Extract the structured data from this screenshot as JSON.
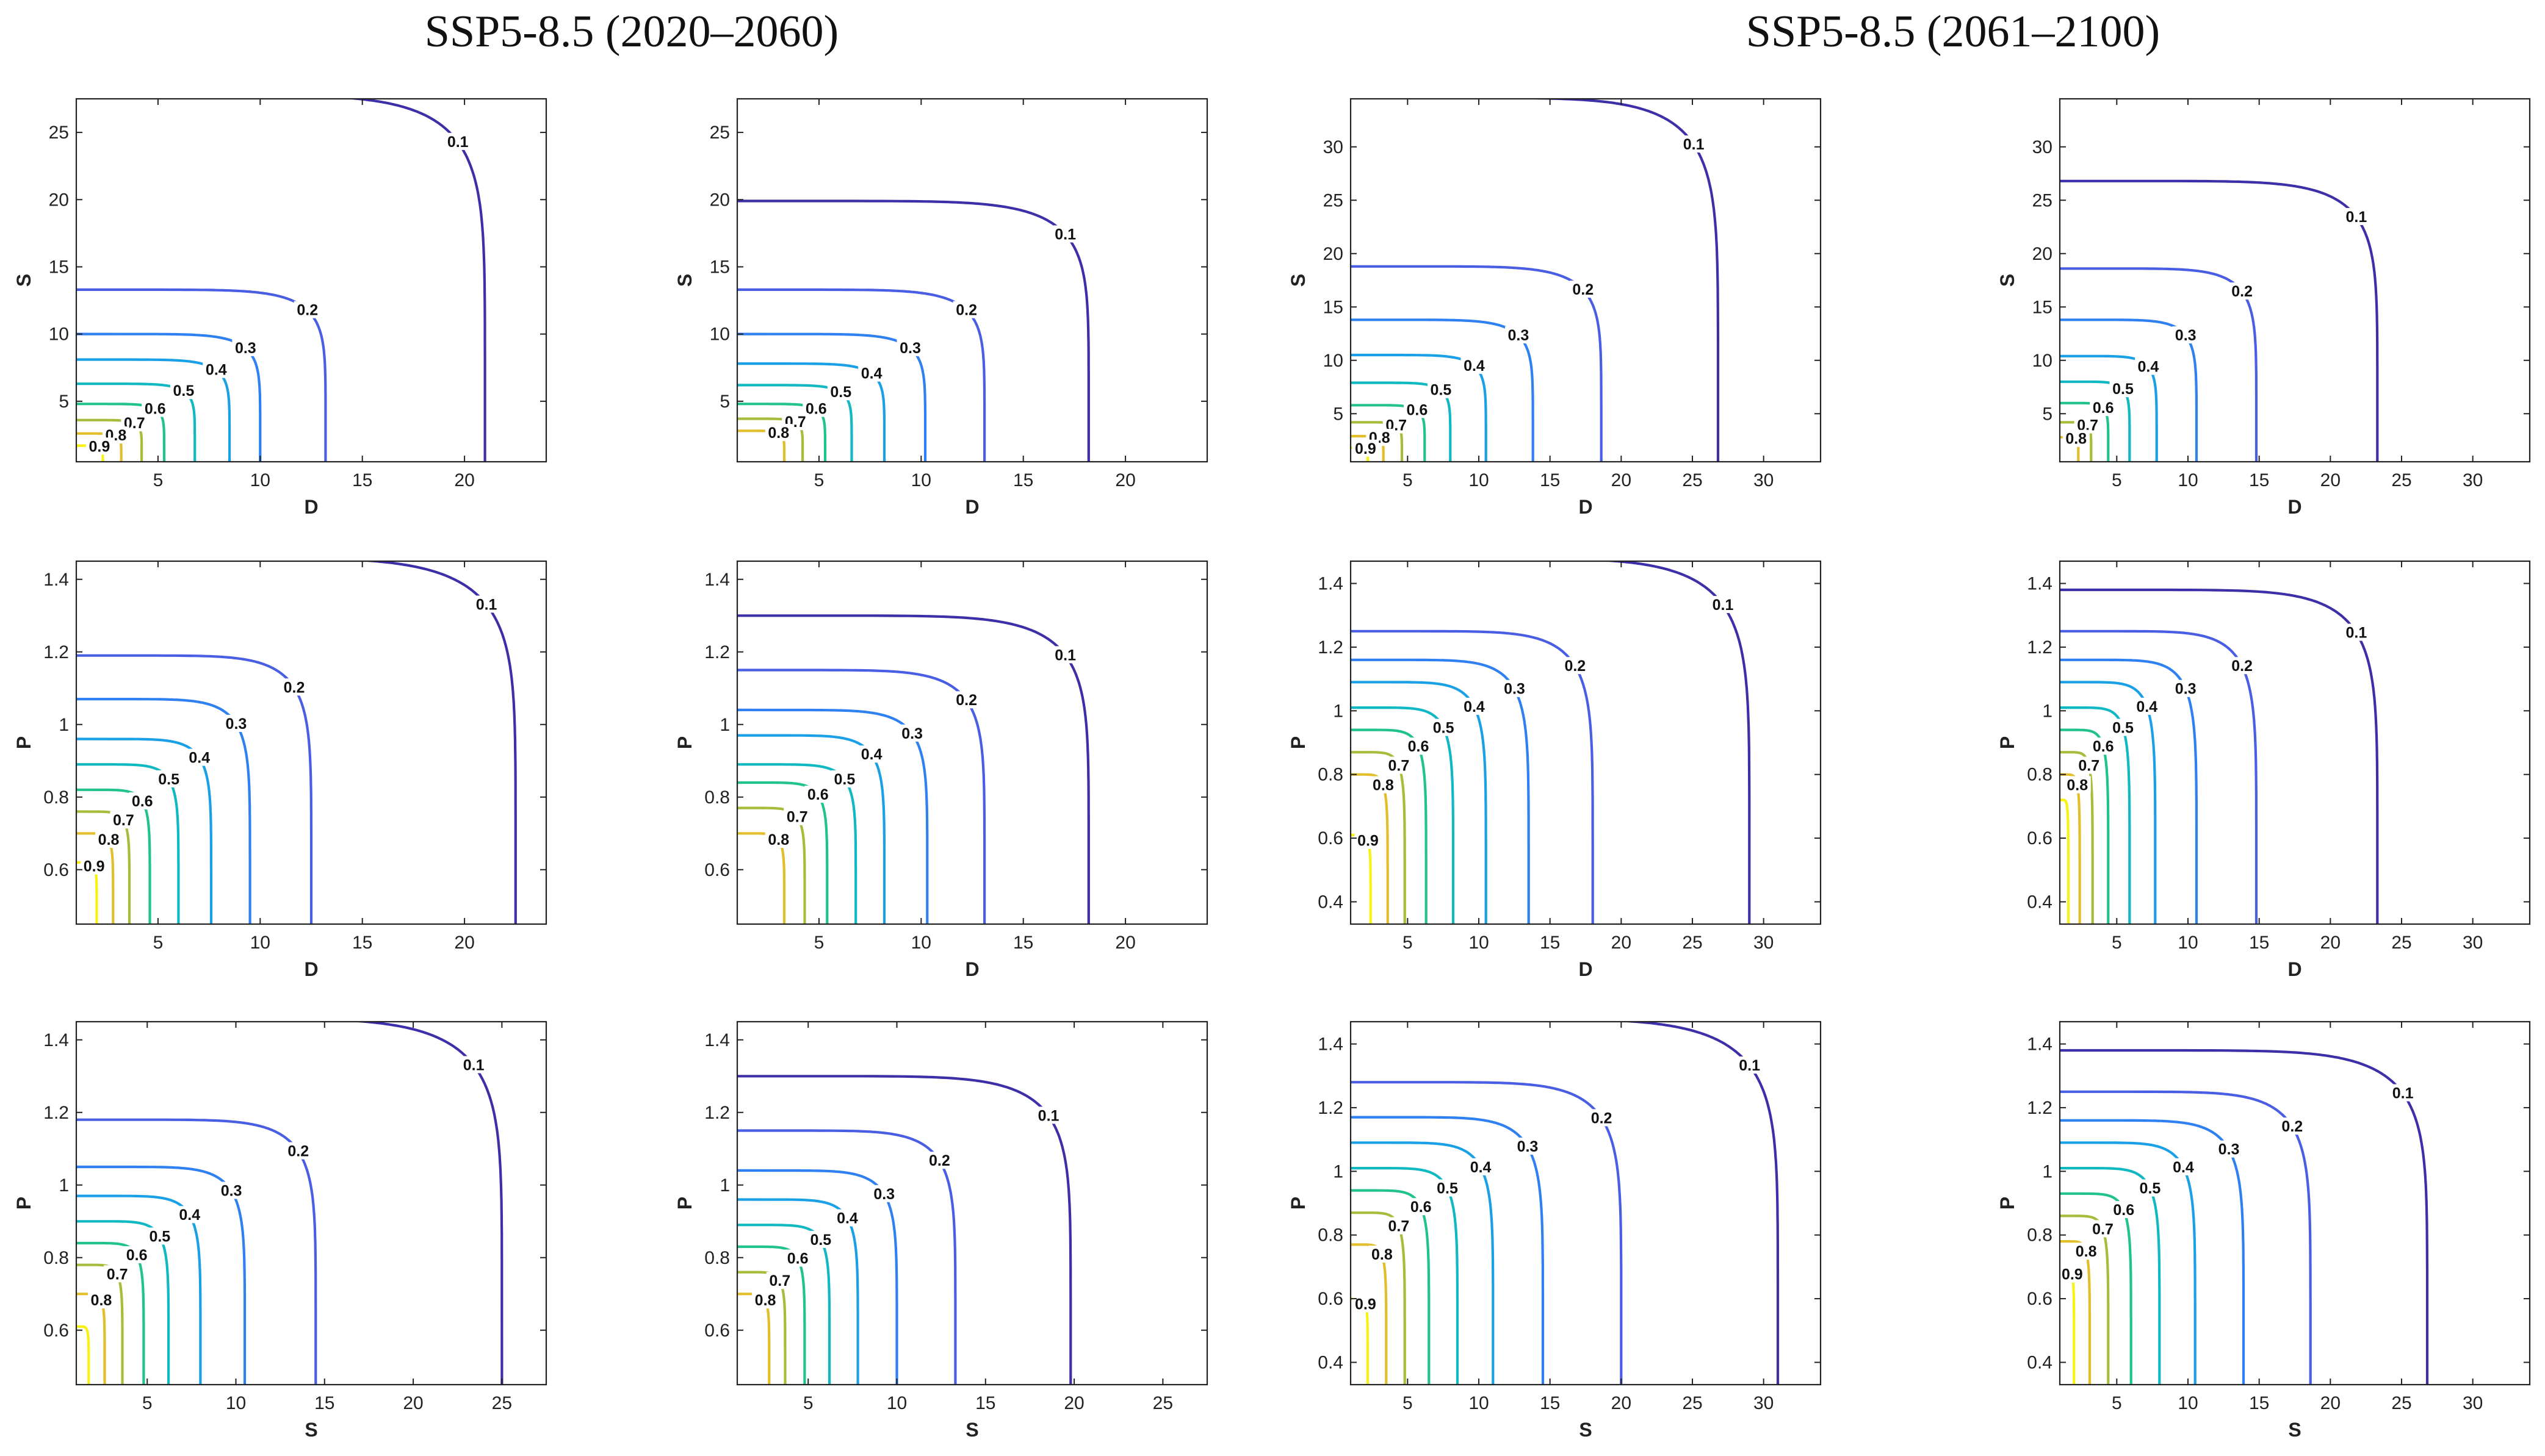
{
  "titles": [
    "SSP5-8.5 (2020–2060)",
    "SSP5-8.5 (2061–2100)"
  ],
  "contour_levels": [
    0.1,
    0.2,
    0.3,
    0.4,
    0.5,
    0.6,
    0.7,
    0.8,
    0.9
  ],
  "level_colors": {
    "0.1": "#3d2fa8",
    "0.2": "#4a5ee3",
    "0.3": "#2f80f0",
    "0.4": "#1aa0e6",
    "0.5": "#10b8c2",
    "0.6": "#22c38a",
    "0.7": "#a6bd3b",
    "0.8": "#e2be2a",
    "0.9": "#f8f210"
  },
  "chart_data": [
    {
      "type": "contour",
      "panel": "row1-col1",
      "group": "SSP5-8.5 (2020–2060)",
      "kind": "joint-survival",
      "xlabel": "D",
      "ylabel": "S",
      "xlim": [
        1,
        24
      ],
      "ylim": [
        0.5,
        27.5
      ],
      "xticks": [
        5,
        10,
        15,
        20
      ],
      "yticks": [
        5,
        10,
        15,
        20,
        25
      ],
      "contours": [
        {
          "level": 0.1,
          "a": 21.0,
          "b": 27.8
        },
        {
          "level": 0.2,
          "a": 13.2,
          "b": 13.3
        },
        {
          "level": 0.3,
          "a": 10.0,
          "b": 10.0
        },
        {
          "level": 0.4,
          "a": 8.5,
          "b": 8.1
        },
        {
          "level": 0.5,
          "a": 6.8,
          "b": 6.3
        },
        {
          "level": 0.6,
          "a": 5.3,
          "b": 4.8
        },
        {
          "level": 0.7,
          "a": 4.2,
          "b": 3.6
        },
        {
          "level": 0.8,
          "a": 3.2,
          "b": 2.6
        },
        {
          "level": 0.9,
          "a": 2.3,
          "b": 1.7
        }
      ]
    },
    {
      "type": "contour",
      "panel": "row1-col2",
      "group": "SSP5-8.5 (2020–2060)",
      "kind": "return-period",
      "xlabel": "D",
      "ylabel": "S",
      "xlim": [
        1,
        24
      ],
      "ylim": [
        0.5,
        27.5
      ],
      "xticks": [
        5,
        10,
        15,
        20
      ],
      "yticks": [
        5,
        10,
        15,
        20,
        25
      ],
      "contours": [
        {
          "level": 0.1,
          "a": 18.2,
          "b": 19.9
        },
        {
          "level": 0.2,
          "a": 13.1,
          "b": 13.3
        },
        {
          "level": 0.3,
          "a": 10.2,
          "b": 10.0
        },
        {
          "level": 0.4,
          "a": 8.2,
          "b": 7.8
        },
        {
          "level": 0.5,
          "a": 6.6,
          "b": 6.2
        },
        {
          "level": 0.6,
          "a": 5.3,
          "b": 4.8
        },
        {
          "level": 0.7,
          "a": 4.2,
          "b": 3.7
        },
        {
          "level": 0.8,
          "a": 3.3,
          "b": 2.8
        }
      ]
    },
    {
      "type": "contour",
      "panel": "row1-col3",
      "group": "SSP5-8.5 (2061–2100)",
      "kind": "joint-survival",
      "xlabel": "D",
      "ylabel": "S",
      "xlim": [
        1,
        34
      ],
      "ylim": [
        0.5,
        34.5
      ],
      "xticks": [
        5,
        10,
        15,
        20,
        25,
        30
      ],
      "yticks": [
        5,
        10,
        15,
        20,
        25,
        30
      ],
      "contours": [
        {
          "level": 0.1,
          "a": 26.8,
          "b": 34.6
        },
        {
          "level": 0.2,
          "a": 18.6,
          "b": 18.8
        },
        {
          "level": 0.3,
          "a": 13.8,
          "b": 13.8
        },
        {
          "level": 0.4,
          "a": 10.5,
          "b": 10.5
        },
        {
          "level": 0.5,
          "a": 8.0,
          "b": 7.9
        },
        {
          "level": 0.6,
          "a": 6.2,
          "b": 5.8
        },
        {
          "level": 0.7,
          "a": 4.6,
          "b": 4.2
        },
        {
          "level": 0.8,
          "a": 3.3,
          "b": 2.9
        },
        {
          "level": 0.9,
          "a": 2.2,
          "b": 1.8
        }
      ]
    },
    {
      "type": "contour",
      "panel": "row1-col4",
      "group": "SSP5-8.5 (2061–2100)",
      "kind": "return-period",
      "xlabel": "D",
      "ylabel": "S",
      "xlim": [
        1,
        34
      ],
      "ylim": [
        0.5,
        34.5
      ],
      "xticks": [
        5,
        10,
        15,
        20,
        25,
        30
      ],
      "yticks": [
        5,
        10,
        15,
        20,
        25,
        30
      ],
      "contours": [
        {
          "level": 0.1,
          "a": 23.3,
          "b": 26.8
        },
        {
          "level": 0.2,
          "a": 14.8,
          "b": 18.6
        },
        {
          "level": 0.3,
          "a": 10.6,
          "b": 13.8
        },
        {
          "level": 0.4,
          "a": 7.8,
          "b": 10.4
        },
        {
          "level": 0.5,
          "a": 5.9,
          "b": 8.0
        },
        {
          "level": 0.6,
          "a": 4.4,
          "b": 6.0
        },
        {
          "level": 0.7,
          "a": 3.2,
          "b": 4.2
        },
        {
          "level": 0.8,
          "a": 2.3,
          "b": 2.8
        }
      ]
    },
    {
      "type": "contour",
      "panel": "row2-col1",
      "group": "SSP5-8.5 (2020–2060)",
      "kind": "joint-survival",
      "xlabel": "D",
      "ylabel": "P",
      "xlim": [
        1,
        24
      ],
      "ylim": [
        0.45,
        1.45
      ],
      "xticks": [
        5,
        10,
        15,
        20
      ],
      "yticks": [
        0.6,
        0.8,
        1,
        1.2,
        1.4
      ],
      "contours": [
        {
          "level": 0.1,
          "a": 22.5,
          "b": 1.46
        },
        {
          "level": 0.2,
          "a": 12.5,
          "b": 1.19
        },
        {
          "level": 0.3,
          "a": 9.5,
          "b": 1.07
        },
        {
          "level": 0.4,
          "a": 7.6,
          "b": 0.96
        },
        {
          "level": 0.5,
          "a": 6.0,
          "b": 0.89
        },
        {
          "level": 0.6,
          "a": 4.6,
          "b": 0.82
        },
        {
          "level": 0.7,
          "a": 3.6,
          "b": 0.76
        },
        {
          "level": 0.8,
          "a": 2.8,
          "b": 0.7
        },
        {
          "level": 0.9,
          "a": 2.0,
          "b": 0.62
        }
      ]
    },
    {
      "type": "contour",
      "panel": "row2-col2",
      "group": "SSP5-8.5 (2020–2060)",
      "kind": "return-period",
      "xlabel": "D",
      "ylabel": "P",
      "xlim": [
        1,
        24
      ],
      "ylim": [
        0.45,
        1.45
      ],
      "xticks": [
        5,
        10,
        15,
        20
      ],
      "yticks": [
        0.6,
        0.8,
        1,
        1.2,
        1.4
      ],
      "contours": [
        {
          "level": 0.1,
          "a": 18.2,
          "b": 1.3
        },
        {
          "level": 0.2,
          "a": 13.1,
          "b": 1.15
        },
        {
          "level": 0.3,
          "a": 10.3,
          "b": 1.04
        },
        {
          "level": 0.4,
          "a": 8.2,
          "b": 0.97
        },
        {
          "level": 0.5,
          "a": 6.8,
          "b": 0.89
        },
        {
          "level": 0.6,
          "a": 5.4,
          "b": 0.84
        },
        {
          "level": 0.7,
          "a": 4.3,
          "b": 0.77
        },
        {
          "level": 0.8,
          "a": 3.3,
          "b": 0.7
        }
      ]
    },
    {
      "type": "contour",
      "panel": "row2-col3",
      "group": "SSP5-8.5 (2061–2100)",
      "kind": "joint-survival",
      "xlabel": "D",
      "ylabel": "P",
      "xlim": [
        1,
        34
      ],
      "ylim": [
        0.33,
        1.47
      ],
      "xticks": [
        5,
        10,
        15,
        20,
        25,
        30
      ],
      "yticks": [
        0.4,
        0.6,
        0.8,
        1,
        1.2,
        1.4
      ],
      "contours": [
        {
          "level": 0.1,
          "a": 29.0,
          "b": 1.48
        },
        {
          "level": 0.2,
          "a": 18.0,
          "b": 1.25
        },
        {
          "level": 0.3,
          "a": 13.5,
          "b": 1.16
        },
        {
          "level": 0.4,
          "a": 10.5,
          "b": 1.09
        },
        {
          "level": 0.5,
          "a": 8.2,
          "b": 1.01
        },
        {
          "level": 0.6,
          "a": 6.3,
          "b": 0.94
        },
        {
          "level": 0.7,
          "a": 4.8,
          "b": 0.87
        },
        {
          "level": 0.8,
          "a": 3.6,
          "b": 0.8
        },
        {
          "level": 0.9,
          "a": 2.4,
          "b": 0.61
        }
      ]
    },
    {
      "type": "contour",
      "panel": "row2-col4",
      "group": "SSP5-8.5 (2061–2100)",
      "kind": "return-period",
      "xlabel": "D",
      "ylabel": "P",
      "xlim": [
        1,
        34
      ],
      "ylim": [
        0.33,
        1.47
      ],
      "xticks": [
        5,
        10,
        15,
        20,
        25,
        30
      ],
      "yticks": [
        0.4,
        0.6,
        0.8,
        1,
        1.2,
        1.4
      ],
      "contours": [
        {
          "level": 0.1,
          "a": 23.3,
          "b": 1.38
        },
        {
          "level": 0.2,
          "a": 14.8,
          "b": 1.25
        },
        {
          "level": 0.3,
          "a": 10.6,
          "b": 1.16
        },
        {
          "level": 0.4,
          "a": 7.7,
          "b": 1.09
        },
        {
          "level": 0.5,
          "a": 5.9,
          "b": 1.01
        },
        {
          "level": 0.6,
          "a": 4.4,
          "b": 0.94
        },
        {
          "level": 0.7,
          "a": 3.3,
          "b": 0.87
        },
        {
          "level": 0.8,
          "a": 2.4,
          "b": 0.8
        },
        {
          "level": 0.9,
          "a": 1.6,
          "b": 0.72
        }
      ]
    },
    {
      "type": "contour",
      "panel": "row3-col1",
      "group": "SSP5-8.5 (2020–2060)",
      "kind": "joint-survival",
      "xlabel": "S",
      "ylabel": "P",
      "xlim": [
        1,
        27.5
      ],
      "ylim": [
        0.45,
        1.45
      ],
      "xticks": [
        5,
        10,
        15,
        20,
        25
      ],
      "yticks": [
        0.6,
        0.8,
        1,
        1.2,
        1.4
      ],
      "contours": [
        {
          "level": 0.1,
          "a": 25.0,
          "b": 1.46
        },
        {
          "level": 0.2,
          "a": 14.5,
          "b": 1.18
        },
        {
          "level": 0.3,
          "a": 10.5,
          "b": 1.05
        },
        {
          "level": 0.4,
          "a": 8.0,
          "b": 0.97
        },
        {
          "level": 0.5,
          "a": 6.2,
          "b": 0.9
        },
        {
          "level": 0.6,
          "a": 4.8,
          "b": 0.84
        },
        {
          "level": 0.7,
          "a": 3.6,
          "b": 0.78
        },
        {
          "level": 0.8,
          "a": 2.6,
          "b": 0.7
        },
        {
          "level": 0.9,
          "a": 1.7,
          "b": 0.61
        }
      ]
    },
    {
      "type": "contour",
      "panel": "row3-col2",
      "group": "SSP5-8.5 (2020–2060)",
      "kind": "return-period",
      "xlabel": "S",
      "ylabel": "P",
      "xlim": [
        1,
        27.5
      ],
      "ylim": [
        0.45,
        1.45
      ],
      "xticks": [
        5,
        10,
        15,
        20,
        25
      ],
      "yticks": [
        0.6,
        0.8,
        1,
        1.2,
        1.4
      ],
      "contours": [
        {
          "level": 0.1,
          "a": 19.8,
          "b": 1.3
        },
        {
          "level": 0.2,
          "a": 13.3,
          "b": 1.15
        },
        {
          "level": 0.3,
          "a": 10.0,
          "b": 1.04
        },
        {
          "level": 0.4,
          "a": 7.8,
          "b": 0.96
        },
        {
          "level": 0.5,
          "a": 6.2,
          "b": 0.89
        },
        {
          "level": 0.6,
          "a": 4.8,
          "b": 0.83
        },
        {
          "level": 0.7,
          "a": 3.7,
          "b": 0.76
        },
        {
          "level": 0.8,
          "a": 2.8,
          "b": 0.7
        }
      ]
    },
    {
      "type": "contour",
      "panel": "row3-col3",
      "group": "SSP5-8.5 (2061–2100)",
      "kind": "joint-survival",
      "xlabel": "S",
      "ylabel": "P",
      "xlim": [
        1,
        34
      ],
      "ylim": [
        0.33,
        1.47
      ],
      "xticks": [
        5,
        10,
        15,
        20,
        25,
        30
      ],
      "yticks": [
        0.4,
        0.6,
        0.8,
        1,
        1.2,
        1.4
      ],
      "contours": [
        {
          "level": 0.1,
          "a": 31.0,
          "b": 1.48
        },
        {
          "level": 0.2,
          "a": 20.0,
          "b": 1.28
        },
        {
          "level": 0.3,
          "a": 14.5,
          "b": 1.17
        },
        {
          "level": 0.4,
          "a": 11.0,
          "b": 1.09
        },
        {
          "level": 0.5,
          "a": 8.5,
          "b": 1.01
        },
        {
          "level": 0.6,
          "a": 6.5,
          "b": 0.94
        },
        {
          "level": 0.7,
          "a": 4.8,
          "b": 0.87
        },
        {
          "level": 0.8,
          "a": 3.5,
          "b": 0.77
        },
        {
          "level": 0.9,
          "a": 2.2,
          "b": 0.6
        }
      ]
    },
    {
      "type": "contour",
      "panel": "row3-col4",
      "group": "SSP5-8.5 (2061–2100)",
      "kind": "return-period",
      "xlabel": "S",
      "ylabel": "P",
      "xlim": [
        1,
        34
      ],
      "ylim": [
        0.33,
        1.47
      ],
      "xticks": [
        5,
        10,
        15,
        20,
        25,
        30
      ],
      "yticks": [
        0.4,
        0.6,
        0.8,
        1,
        1.2,
        1.4
      ],
      "contours": [
        {
          "level": 0.1,
          "a": 26.8,
          "b": 1.38
        },
        {
          "level": 0.2,
          "a": 18.6,
          "b": 1.25
        },
        {
          "level": 0.3,
          "a": 13.9,
          "b": 1.16
        },
        {
          "level": 0.4,
          "a": 10.5,
          "b": 1.09
        },
        {
          "level": 0.5,
          "a": 8.0,
          "b": 1.01
        },
        {
          "level": 0.6,
          "a": 6.0,
          "b": 0.93
        },
        {
          "level": 0.7,
          "a": 4.4,
          "b": 0.86
        },
        {
          "level": 0.8,
          "a": 3.1,
          "b": 0.78
        },
        {
          "level": 0.9,
          "a": 2.0,
          "b": 0.7
        }
      ]
    }
  ]
}
